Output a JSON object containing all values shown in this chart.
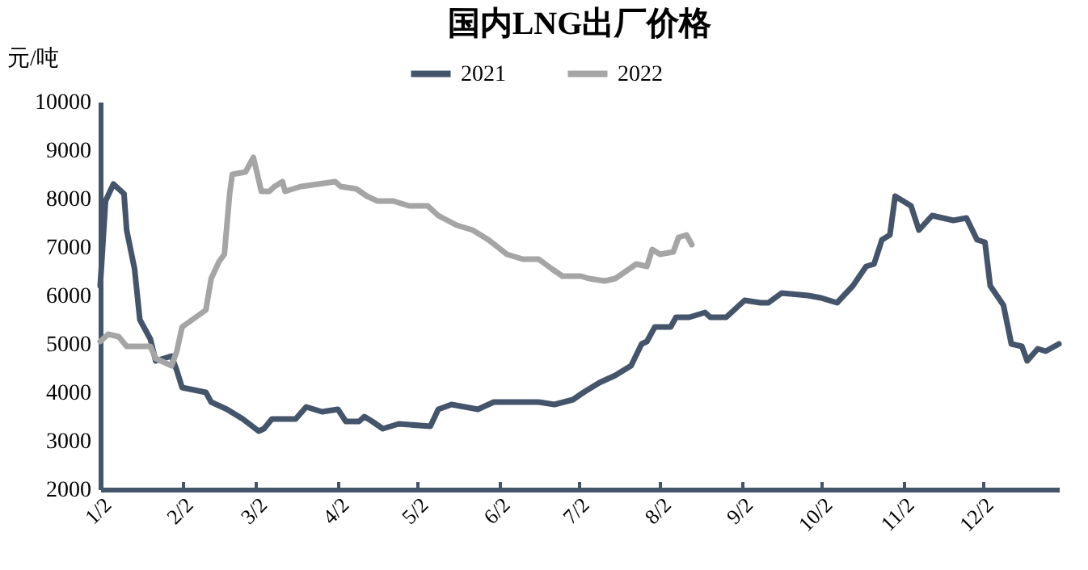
{
  "chart_data": {
    "type": "line",
    "title": "国内LNG出厂价格",
    "ylabel": "元/吨",
    "legend": "top",
    "grid": false,
    "line_style": "solid",
    "marker": "none",
    "ylim": [
      2000,
      10000
    ],
    "yticks": [
      2000,
      3000,
      4000,
      5000,
      6000,
      7000,
      8000,
      9000,
      10000
    ],
    "xlim": [
      "--01-02",
      "--12-31"
    ],
    "xticks": [
      {
        "value": "--01-02",
        "label": "1/2"
      },
      {
        "value": "--02-02",
        "label": "2/2"
      },
      {
        "value": "--03-02",
        "label": "3/2"
      },
      {
        "value": "--04-02",
        "label": "4/2"
      },
      {
        "value": "--05-02",
        "label": "5/2"
      },
      {
        "value": "--06-02",
        "label": "6/2"
      },
      {
        "value": "--07-02",
        "label": "7/2"
      },
      {
        "value": "--08-02",
        "label": "8/2"
      },
      {
        "value": "--09-02",
        "label": "9/2"
      },
      {
        "value": "--10-02",
        "label": "10/2"
      },
      {
        "value": "--11-02",
        "label": "11/2"
      },
      {
        "value": "--12-02",
        "label": "12/2"
      }
    ],
    "series": [
      {
        "name": "2021",
        "color": "#44546a",
        "x": [
          "--01-02",
          "--01-04",
          "--01-07",
          "--01-09",
          "--01-11",
          "--01-12",
          "--01-15",
          "--01-17",
          "--01-21",
          "--01-23",
          "--01-29",
          "--01-31",
          "--02-02",
          "--02-11",
          "--02-13",
          "--02-19",
          "--02-25",
          "--03-03",
          "--03-05",
          "--03-08",
          "--03-17",
          "--03-21",
          "--03-27",
          "--04-02",
          "--04-05",
          "--04-10",
          "--04-12",
          "--04-15",
          "--04-19",
          "--04-25",
          "--05-07",
          "--05-10",
          "--05-15",
          "--05-25",
          "--05-31",
          "--06-17",
          "--06-23",
          "--06-30",
          "--07-04",
          "--07-10",
          "--07-16",
          "--07-22",
          "--07-26",
          "--07-28",
          "--07-31",
          "--08-02",
          "--08-06",
          "--08-08",
          "--08-13",
          "--08-19",
          "--08-21",
          "--08-27",
          "--09-03",
          "--09-09",
          "--09-12",
          "--09-17",
          "--09-27",
          "--10-02",
          "--10-08",
          "--10-14",
          "--10-19",
          "--10-22",
          "--10-25",
          "--10-28",
          "--10-30",
          "--11-05",
          "--11-08",
          "--11-13",
          "--11-21",
          "--11-26",
          "--11-30",
          "--12-03",
          "--12-05",
          "--12-10",
          "--12-13",
          "--12-17",
          "--12-19",
          "--12-23",
          "--12-26",
          "--12-31"
        ],
        "values": [
          6200,
          7950,
          8300,
          8200,
          8100,
          7350,
          6550,
          5500,
          5100,
          4650,
          4750,
          4450,
          4100,
          4000,
          3800,
          3650,
          3450,
          3200,
          3250,
          3450,
          3450,
          3700,
          3600,
          3650,
          3400,
          3400,
          3500,
          3400,
          3250,
          3350,
          3300,
          3650,
          3750,
          3650,
          3800,
          3800,
          3750,
          3850,
          4000,
          4200,
          4350,
          4550,
          5000,
          5050,
          5350,
          5350,
          5350,
          5550,
          5550,
          5650,
          5550,
          5550,
          5900,
          5850,
          5850,
          6050,
          6000,
          5950,
          5850,
          6200,
          6600,
          6650,
          7150,
          7250,
          8050,
          7850,
          7350,
          7650,
          7550,
          7600,
          7150,
          7100,
          6200,
          5800,
          5000,
          4950,
          4650,
          4900,
          4850,
          5000
        ]
      },
      {
        "name": "2022",
        "color": "#a5a5a5",
        "x": [
          "--01-02",
          "--01-05",
          "--01-09",
          "--01-12",
          "--01-21",
          "--01-23",
          "--01-29",
          "--01-31",
          "--02-02",
          "--02-11",
          "--02-13",
          "--02-16",
          "--02-18",
          "--02-20",
          "--02-21",
          "--02-26",
          "--02-28",
          "--03-01",
          "--03-04",
          "--03-07",
          "--03-09",
          "--03-12",
          "--03-13",
          "--03-16",
          "--03-19",
          "--04-01",
          "--04-03",
          "--04-09",
          "--04-13",
          "--04-17",
          "--04-23",
          "--04-29",
          "--05-06",
          "--05-10",
          "--05-17",
          "--05-23",
          "--05-29",
          "--06-05",
          "--06-11",
          "--06-17",
          "--06-22",
          "--06-26",
          "--07-03",
          "--07-06",
          "--07-12",
          "--07-16",
          "--07-24",
          "--07-28",
          "--07-30",
          "--08-02",
          "--08-07",
          "--08-09",
          "--08-12",
          "--08-14"
        ],
        "values": [
          5050,
          5200,
          5150,
          4950,
          4950,
          4700,
          4550,
          4850,
          5350,
          5700,
          6350,
          6700,
          6850,
          8100,
          8500,
          8550,
          8750,
          8850,
          8150,
          8150,
          8250,
          8350,
          8150,
          8200,
          8250,
          8350,
          8250,
          8200,
          8050,
          7950,
          7950,
          7850,
          7850,
          7650,
          7450,
          7350,
          7150,
          6850,
          6750,
          6750,
          6550,
          6400,
          6400,
          6350,
          6300,
          6350,
          6650,
          6600,
          6950,
          6850,
          6900,
          7200,
          7250,
          7050
        ]
      }
    ]
  }
}
